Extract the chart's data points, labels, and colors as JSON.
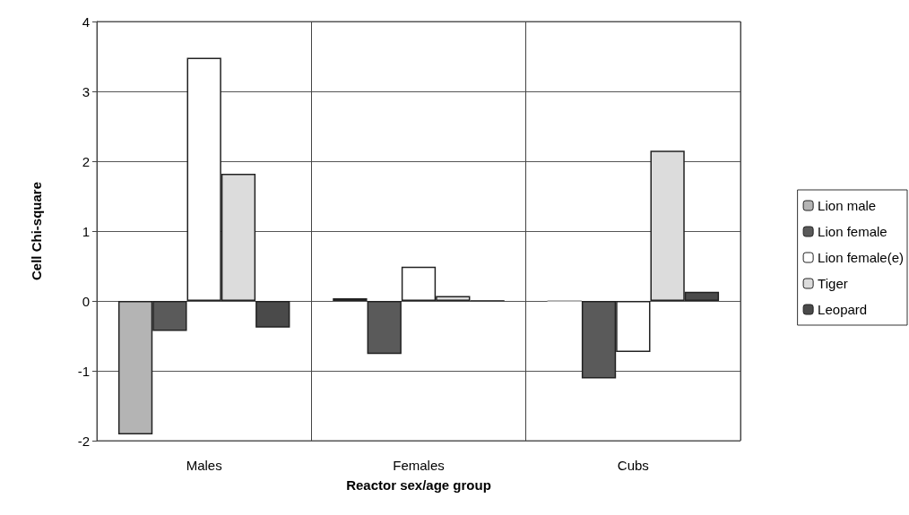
{
  "chart_data": {
    "type": "bar",
    "xlabel": "Reactor sex/age group",
    "ylabel": "Cell Chi-square",
    "categories": [
      "Males",
      "Females",
      "Cubs"
    ],
    "series": [
      {
        "name": "Lion male",
        "color": "#b4b4b4",
        "values": [
          -1.91,
          0.04,
          0
        ]
      },
      {
        "name": "Lion female",
        "color": "#5a5a5a",
        "values": [
          -0.43,
          -0.76,
          -1.11
        ]
      },
      {
        "name": "Lion female(e)",
        "color": "#ffffff",
        "values": [
          3.48,
          0.49,
          -0.73
        ]
      },
      {
        "name": "Tiger",
        "color": "#dcdcdc",
        "values": [
          1.82,
          0.07,
          2.15
        ]
      },
      {
        "name": "Leopard",
        "color": "#4a4a4a",
        "values": [
          -0.38,
          0,
          0.13
        ]
      }
    ],
    "ylim": [
      -2,
      4
    ],
    "yticks": [
      -2,
      -1,
      0,
      1,
      2,
      3,
      4
    ],
    "grid": true,
    "legend": "right"
  }
}
